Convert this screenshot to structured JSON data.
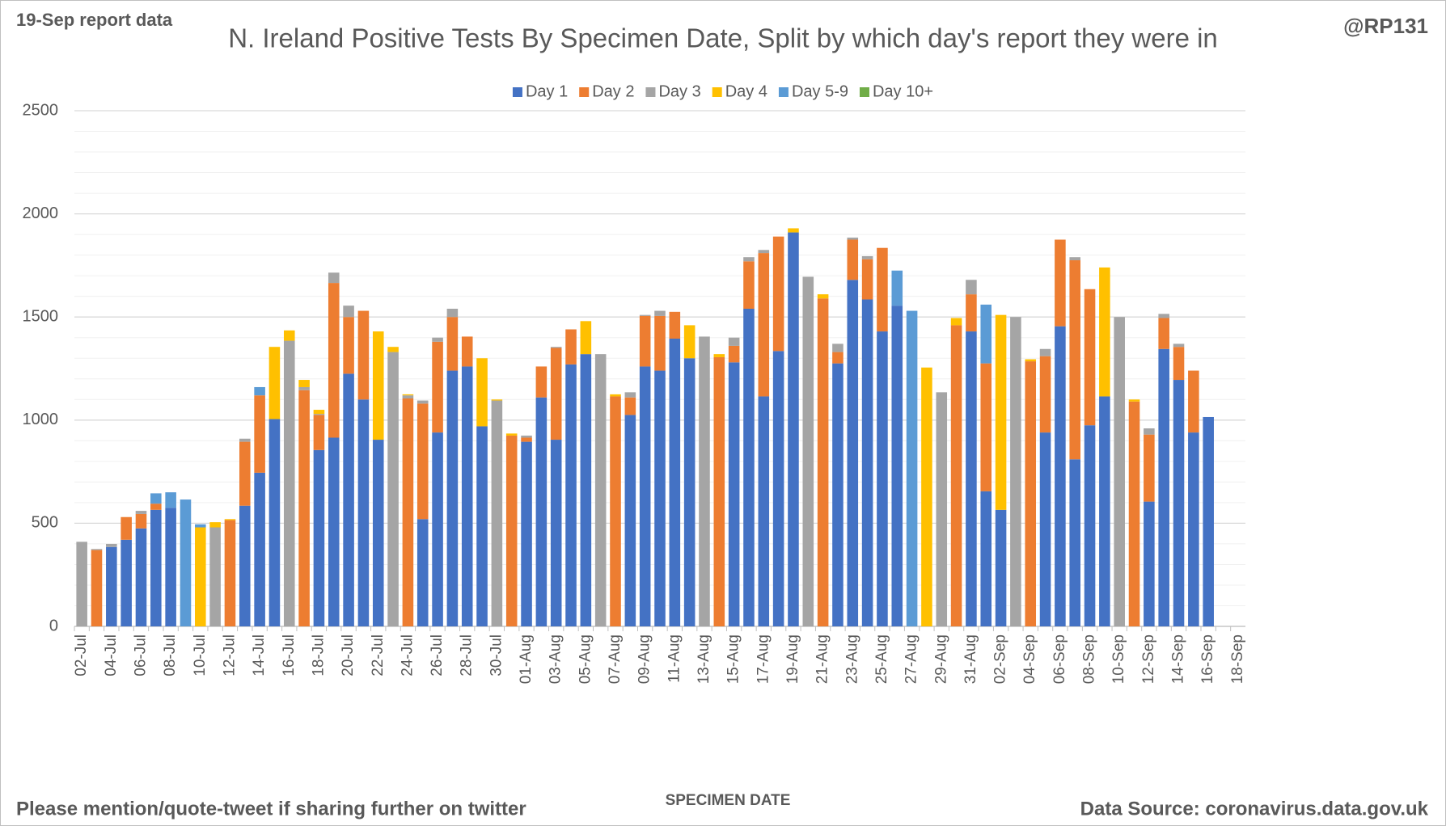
{
  "chart_data": {
    "type": "stacked_bar",
    "title": "N. Ireland Positive Tests By Specimen Date, Split by which day's report they were in",
    "report_note": "19-Sep report data",
    "handle": "@RP131",
    "xlabel": "SPECIMEN DATE",
    "footer_left": "Please mention/quote-tweet if sharing further on twitter",
    "footer_right": "Data Source: coronavirus.data.gov.uk",
    "categories": [
      "02-Jul",
      null,
      "04-Jul",
      null,
      "06-Jul",
      null,
      "08-Jul",
      null,
      "10-Jul",
      null,
      "12-Jul",
      null,
      "14-Jul",
      null,
      "16-Jul",
      null,
      "18-Jul",
      null,
      "20-Jul",
      null,
      "22-Jul",
      null,
      "24-Jul",
      null,
      "26-Jul",
      null,
      "28-Jul",
      null,
      "30-Jul",
      null,
      "01-Aug",
      null,
      "03-Aug",
      null,
      "05-Aug",
      null,
      "07-Aug",
      null,
      "09-Aug",
      null,
      "11-Aug",
      null,
      "13-Aug",
      null,
      "15-Aug",
      null,
      "17-Aug",
      null,
      "19-Aug",
      null,
      "21-Aug",
      null,
      "23-Aug",
      null,
      "25-Aug",
      null,
      "27-Aug",
      null,
      "29-Aug",
      null,
      "31-Aug",
      null,
      "02-Sep",
      null,
      "04-Sep",
      null,
      "06-Sep",
      null,
      "08-Sep",
      null,
      "10-Sep",
      null,
      "12-Sep",
      null,
      "14-Sep",
      null,
      "16-Sep",
      null,
      "18-Sep"
    ],
    "series": [
      {
        "name": "Day 1",
        "color": "#4472c4",
        "values": [
          0,
          0,
          385,
          420,
          475,
          565,
          575,
          0,
          0,
          0,
          0,
          585,
          745,
          1005,
          0,
          0,
          855,
          915,
          1225,
          1100,
          905,
          0,
          0,
          520,
          940,
          1240,
          1260,
          970,
          0,
          0,
          895,
          1110,
          905,
          1270,
          1320,
          0,
          0,
          1025,
          1260,
          1240,
          1395,
          1300,
          0,
          0,
          1280,
          1540,
          1115,
          1335,
          1910,
          0,
          0,
          1275,
          1680,
          1585,
          1430,
          1555,
          0,
          0,
          0,
          0,
          1430,
          655,
          565,
          0,
          0,
          940,
          1455,
          810,
          975,
          1115,
          0,
          0,
          605,
          1345,
          1195,
          940,
          1015,
          0,
          0
        ]
      },
      {
        "name": "Day 2",
        "color": "#ed7d31",
        "values": [
          0,
          370,
          0,
          110,
          70,
          30,
          0,
          0,
          0,
          0,
          515,
          310,
          375,
          0,
          0,
          1145,
          170,
          750,
          275,
          430,
          0,
          0,
          1105,
          560,
          440,
          260,
          145,
          0,
          0,
          925,
          20,
          150,
          445,
          170,
          0,
          0,
          1115,
          85,
          245,
          265,
          130,
          0,
          0,
          1305,
          80,
          230,
          695,
          555,
          0,
          0,
          1590,
          55,
          195,
          195,
          405,
          0,
          0,
          0,
          0,
          1460,
          180,
          620,
          0,
          0,
          1285,
          370,
          420,
          965,
          660,
          0,
          0,
          1090,
          325,
          150,
          160,
          300,
          0,
          0,
          0
        ]
      },
      {
        "name": "Day 3",
        "color": "#a5a5a5",
        "values": [
          410,
          5,
          15,
          0,
          15,
          0,
          0,
          0,
          0,
          480,
          0,
          15,
          0,
          0,
          1385,
          15,
          5,
          50,
          55,
          0,
          0,
          1330,
          15,
          15,
          20,
          40,
          0,
          0,
          1095,
          0,
          10,
          0,
          5,
          0,
          0,
          1320,
          0,
          25,
          5,
          25,
          0,
          0,
          1405,
          0,
          40,
          20,
          15,
          0,
          0,
          1695,
          0,
          40,
          10,
          15,
          0,
          0,
          0,
          0,
          1135,
          0,
          70,
          0,
          0,
          1500,
          0,
          35,
          0,
          15,
          0,
          0,
          1500,
          0,
          30,
          20,
          15,
          0,
          0,
          0,
          0
        ]
      },
      {
        "name": "Day 4",
        "color": "#ffc000",
        "values": [
          0,
          0,
          0,
          0,
          0,
          0,
          0,
          0,
          480,
          25,
          5,
          0,
          0,
          350,
          50,
          35,
          20,
          0,
          0,
          0,
          525,
          25,
          5,
          0,
          0,
          0,
          0,
          330,
          5,
          10,
          0,
          0,
          0,
          0,
          160,
          0,
          10,
          0,
          0,
          0,
          0,
          160,
          0,
          15,
          0,
          0,
          0,
          0,
          20,
          0,
          20,
          0,
          0,
          0,
          0,
          0,
          0,
          1255,
          0,
          35,
          0,
          0,
          945,
          0,
          10,
          0,
          0,
          0,
          0,
          625,
          0,
          10,
          0,
          0,
          0,
          0,
          0,
          0,
          0
        ]
      },
      {
        "name": "Day 5-9",
        "color": "#5b9bd5",
        "values": [
          0,
          0,
          0,
          0,
          0,
          50,
          75,
          615,
          15,
          0,
          0,
          0,
          40,
          0,
          0,
          0,
          0,
          0,
          0,
          0,
          0,
          0,
          0,
          0,
          0,
          0,
          0,
          0,
          0,
          0,
          0,
          0,
          0,
          0,
          0,
          0,
          0,
          0,
          0,
          0,
          0,
          0,
          0,
          0,
          0,
          0,
          0,
          0,
          0,
          0,
          0,
          0,
          0,
          0,
          0,
          170,
          1530,
          0,
          0,
          0,
          0,
          285,
          0,
          0,
          0,
          0,
          0,
          0,
          0,
          0,
          0,
          0,
          0,
          0,
          0,
          0,
          0,
          0,
          0
        ]
      },
      {
        "name": "Day 10+",
        "color": "#70ad47",
        "values": [
          0,
          0,
          0,
          0,
          0,
          0,
          0,
          0,
          0,
          0,
          0,
          0,
          0,
          0,
          0,
          0,
          0,
          0,
          0,
          0,
          0,
          0,
          0,
          0,
          0,
          0,
          0,
          0,
          0,
          0,
          0,
          0,
          0,
          0,
          0,
          0,
          0,
          0,
          0,
          0,
          0,
          0,
          0,
          0,
          0,
          0,
          0,
          0,
          0,
          0,
          0,
          0,
          0,
          0,
          0,
          0,
          0,
          0,
          0,
          0,
          0,
          0,
          0,
          0,
          0,
          0,
          0,
          0,
          0,
          0,
          0,
          0,
          0,
          0,
          0,
          0,
          0,
          0,
          0
        ]
      }
    ],
    "ylim": [
      0,
      2500
    ],
    "yticks": [
      0,
      500,
      1000,
      1500,
      2000,
      2500
    ],
    "yminorticks": [
      100,
      200,
      300,
      400,
      600,
      700,
      800,
      900,
      1100,
      1200,
      1300,
      1400,
      1600,
      1700,
      1800,
      1900,
      2100,
      2200,
      2300,
      2400
    ],
    "grid": true,
    "legend": "top"
  }
}
